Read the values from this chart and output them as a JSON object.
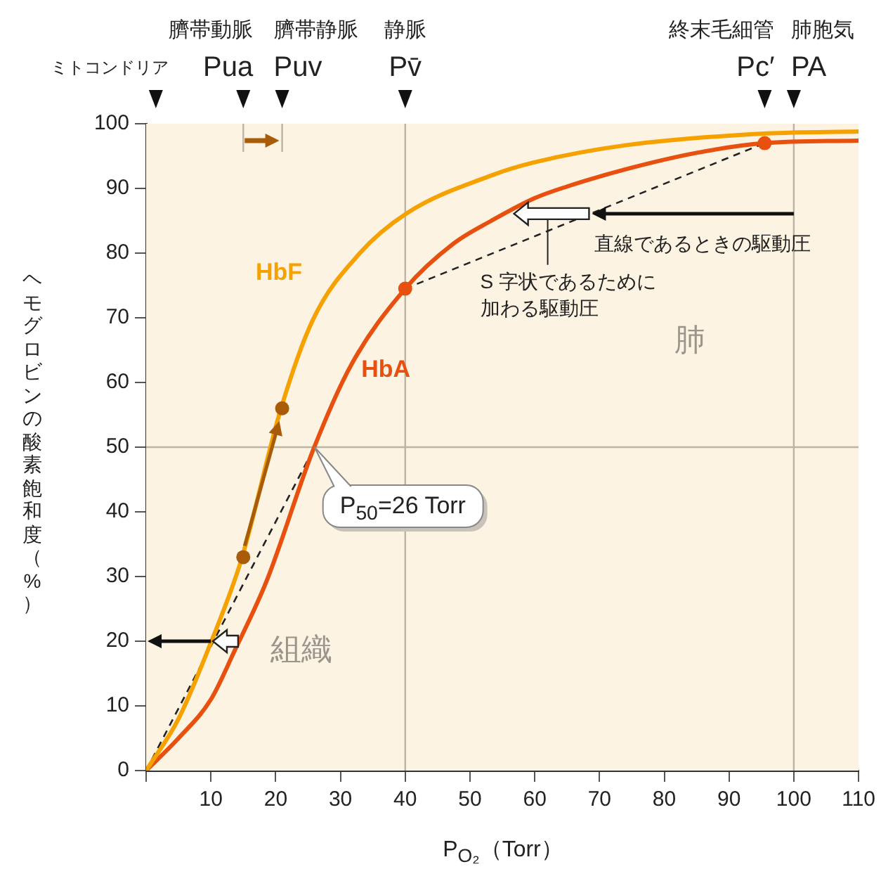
{
  "chart_data": {
    "type": "line",
    "xlabel": "P$_{O₂}$（Torr）",
    "ylabel": "ヘモグロビンの酸素飽和度（%）",
    "xlim": [
      0,
      110
    ],
    "xticks": [
      {
        "value": 0,
        "label": null
      },
      10,
      20,
      30,
      40,
      50,
      60,
      70,
      80,
      90,
      100,
      110
    ],
    "ylim": [
      0,
      100
    ],
    "yticks": [
      0,
      10,
      20,
      30,
      40,
      50,
      60,
      70,
      80,
      90,
      100
    ],
    "grid": false,
    "legend": false,
    "series": [
      {
        "name": "HbF",
        "color": "#f5a200",
        "x": [
          0,
          5,
          10,
          14.7,
          20.8,
          25.8,
          33,
          40.3,
          53.3,
          59.8,
          74.2,
          95.9,
          110
        ],
        "values": [
          0,
          8,
          19.8,
          32.6,
          55.9,
          69.8,
          80,
          86.2,
          92,
          94,
          96.7,
          98.5,
          98.8
        ]
      },
      {
        "name": "HbA",
        "color": "#e8500f",
        "x": [
          0,
          5,
          10,
          13.6,
          18.6,
          25.8,
          31.6,
          40,
          47.5,
          53.3,
          60,
          65,
          74.2,
          85,
          95.5,
          110
        ],
        "values": [
          0,
          5,
          11,
          18.4,
          29.3,
          49.6,
          62.6,
          74.5,
          81.5,
          85,
          88.5,
          90.3,
          93,
          95.5,
          97,
          97.4
        ]
      },
      {
        "type": "scatter",
        "color": "#a85c0a",
        "marker": "circle",
        "x": [
          15,
          21
        ],
        "values": [
          33,
          56
        ]
      },
      {
        "type": "scatter",
        "color": "#e8500f",
        "marker": "circle",
        "x": [
          40,
          95.5
        ],
        "values": [
          74.5,
          97
        ]
      },
      {
        "color": "#222222",
        "line_style": "dashed",
        "x": [
          0,
          26
        ],
        "values": [
          0,
          50
        ]
      },
      {
        "color": "#222222",
        "line_style": "dashed",
        "x": [
          40,
          95.5
        ],
        "values": [
          74.5,
          97
        ]
      }
    ],
    "ref_lines": [
      {
        "axis": "x",
        "value": 40,
        "label": "静脈\nPv̄",
        "color": "#bdb3a6"
      },
      {
        "axis": "x",
        "value": 100,
        "label": "肺胞気\nPA",
        "color": "#bdb3a6"
      },
      {
        "axis": "y",
        "value": 50,
        "color": "#bdb3a6"
      }
    ],
    "annotations": [
      "ミトコンドリア",
      "臍帯動脈\nPua",
      "臍帯静脈\nPuv",
      "終末毛細管\nPc′",
      {
        "text": "P$_{50}$=26 Torr",
        "x": 26,
        "y": 50
      },
      "組織",
      "肺",
      {
        "text": "直線であるときの駆動圧",
        "x": 68.6,
        "y": 86.1
      },
      {
        "text": "S 字状であるために加わる駆動圧",
        "x": 62,
        "y": 83.4
      }
    ]
  }
}
